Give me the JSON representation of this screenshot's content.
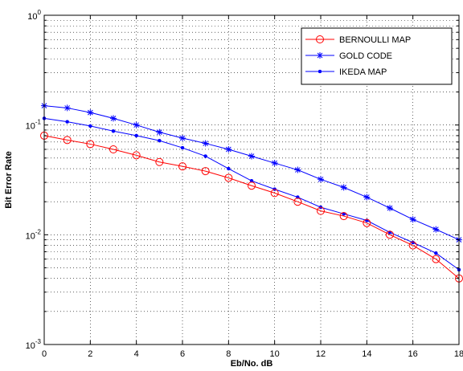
{
  "chart_data": {
    "type": "line",
    "title": "",
    "xlabel": "Eb/No. dB",
    "ylabel": "Bit Error Rate",
    "xlim": [
      0,
      18
    ],
    "ylim": [
      0.001,
      1
    ],
    "yscale": "log",
    "grid": true,
    "legend_position": "top-right",
    "x_ticks": [
      0,
      2,
      4,
      6,
      8,
      10,
      12,
      14,
      16,
      18
    ],
    "y_ticks": [
      {
        "value": 1,
        "base": "10",
        "exp": "0"
      },
      {
        "value": 0.1,
        "base": "10",
        "exp": "-1"
      },
      {
        "value": 0.01,
        "base": "10",
        "exp": "-2"
      },
      {
        "value": 0.001,
        "base": "10",
        "exp": "-3"
      }
    ],
    "x": [
      0,
      1,
      2,
      3,
      4,
      5,
      6,
      7,
      8,
      9,
      10,
      11,
      12,
      13,
      14,
      15,
      16,
      17,
      18
    ],
    "series": [
      {
        "name": "BERNOULLI MAP",
        "color": "#ff0000",
        "marker": "circle",
        "values": [
          0.08,
          0.073,
          0.067,
          0.06,
          0.053,
          0.046,
          0.042,
          0.038,
          0.033,
          0.028,
          0.024,
          0.02,
          0.0165,
          0.0148,
          0.0128,
          0.01,
          0.008,
          0.006,
          0.004
        ]
      },
      {
        "name": "GOLD CODE",
        "color": "#0000ff",
        "marker": "star",
        "values": [
          0.15,
          0.143,
          0.13,
          0.115,
          0.1,
          0.086,
          0.076,
          0.068,
          0.06,
          0.052,
          0.045,
          0.039,
          0.032,
          0.027,
          0.022,
          0.0175,
          0.0138,
          0.0112,
          0.009
        ]
      },
      {
        "name": "IKEDA MAP",
        "color": "#0000ff",
        "marker": "dot",
        "values": [
          0.115,
          0.107,
          0.098,
          0.088,
          0.08,
          0.072,
          0.062,
          0.052,
          0.04,
          0.031,
          0.026,
          0.022,
          0.0178,
          0.0155,
          0.0135,
          0.0105,
          0.0085,
          0.0068,
          0.0048
        ]
      }
    ]
  }
}
